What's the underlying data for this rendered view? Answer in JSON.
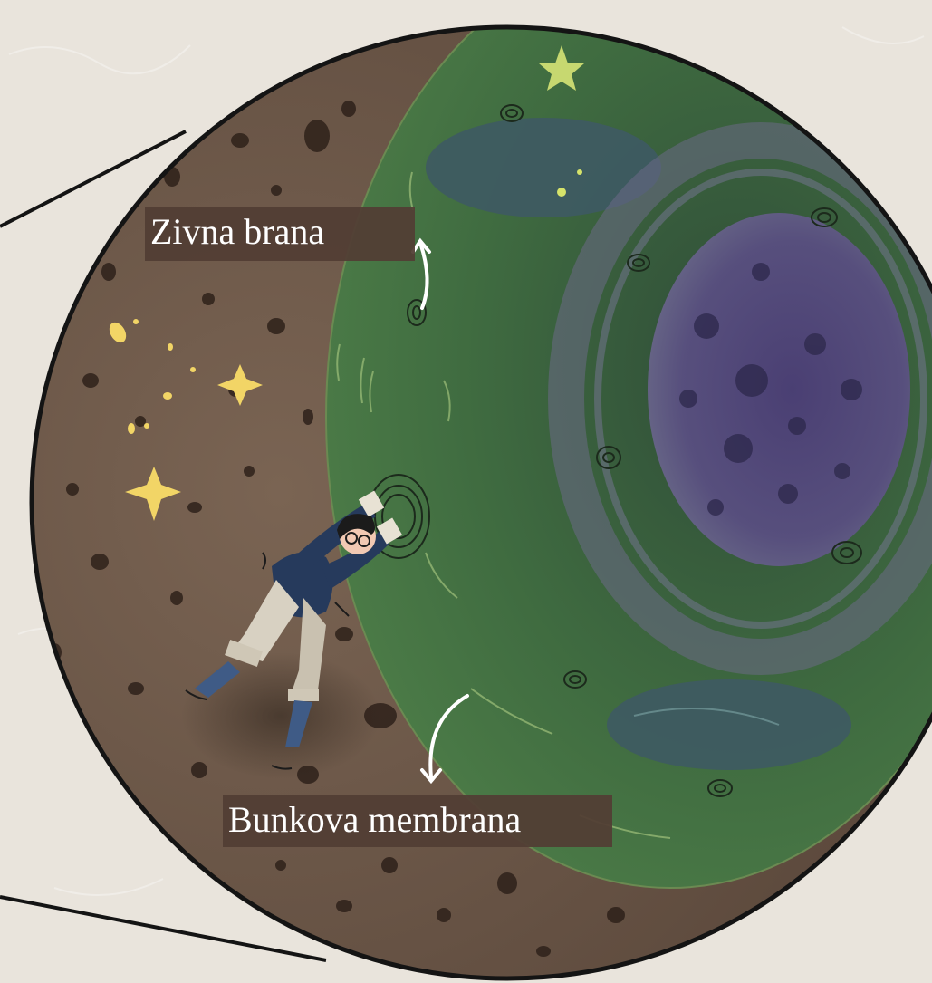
{
  "labels": {
    "nutrient_membrane": "Zivna brana",
    "cell_membrane": "Bunkova membrana"
  },
  "colors": {
    "paper_background": "#e9e4dc",
    "nutrient_medium": "#6b5647",
    "cell_cytoplasm": "#3d6a3f",
    "nucleus": "#4e4a68",
    "vacuole": "#3e5a63",
    "label_background": "#523e34",
    "label_text": "#ffffff",
    "star": "#f2d566",
    "outline": "#141414"
  },
  "icons": [
    "star-icon",
    "curved-arrow-icon",
    "child-figure-icon",
    "membrane-pore-icon"
  ]
}
